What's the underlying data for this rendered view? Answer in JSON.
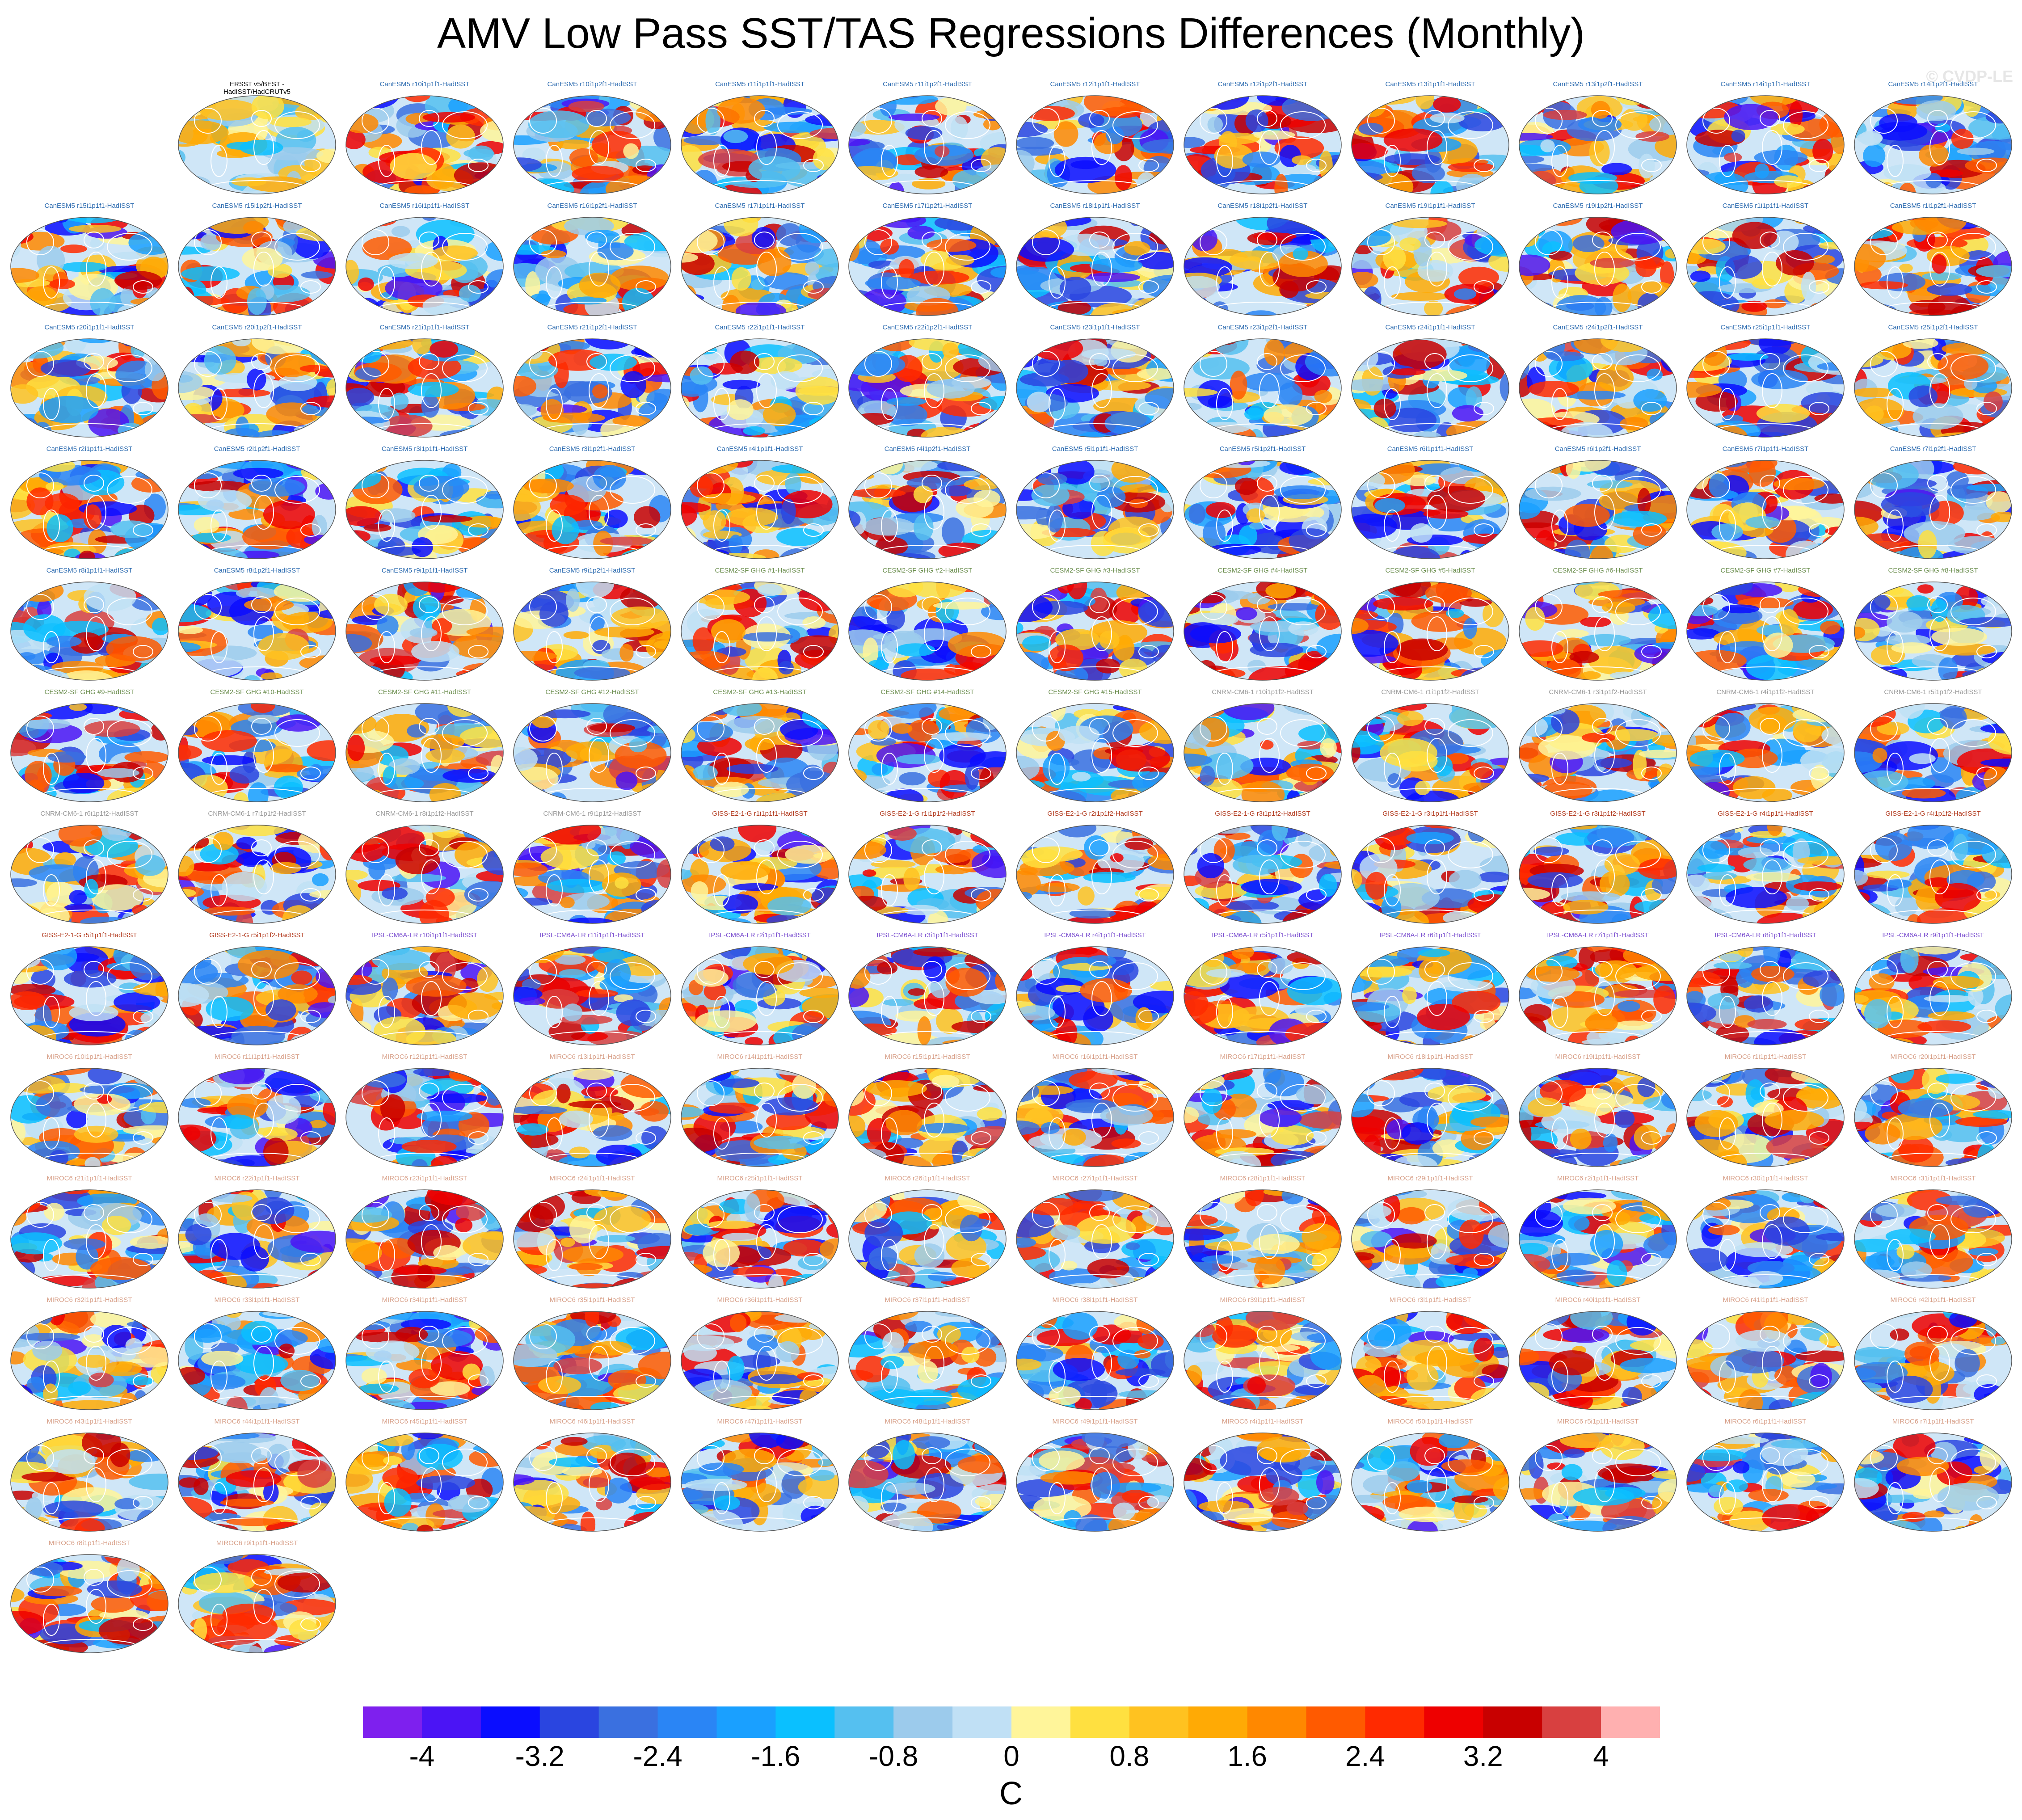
{
  "title": "AMV Low Pass SST/TAS Regressions Differences (Monthly)",
  "watermark": "© CVDP-LE",
  "colors": {
    "canesm5": "#2c6bb0",
    "cesm2": "#6b8e4e",
    "cnrm": "#9a9a9a",
    "giss": "#b23a1e",
    "ipsl": "#7b4fd0",
    "miroc6": "#d8a089",
    "obs": "#000000",
    "land": "#a8a8a8"
  },
  "panels": [
    {
      "title": "ERSST v5/BEST -\nHadISST/HadCRUTv5",
      "group": "obs"
    },
    {
      "title": "CanESM5 r10i1p1f1-HadISST",
      "group": "canesm5"
    },
    {
      "title": "CanESM5 r10i1p2f1-HadISST",
      "group": "canesm5"
    },
    {
      "title": "CanESM5 r11i1p1f1-HadISST",
      "group": "canesm5"
    },
    {
      "title": "CanESM5 r11i1p2f1-HadISST",
      "group": "canesm5"
    },
    {
      "title": "CanESM5 r12i1p1f1-HadISST",
      "group": "canesm5"
    },
    {
      "title": "CanESM5 r12i1p2f1-HadISST",
      "group": "canesm5"
    },
    {
      "title": "CanESM5 r13i1p1f1-HadISST",
      "group": "canesm5"
    },
    {
      "title": "CanESM5 r13i1p2f1-HadISST",
      "group": "canesm5"
    },
    {
      "title": "CanESM5 r14i1p1f1-HadISST",
      "group": "canesm5"
    },
    {
      "title": "CanESM5 r14i1p2f1-HadISST",
      "group": "canesm5"
    },
    {
      "title": "CanESM5 r15i1p1f1-HadISST",
      "group": "canesm5"
    },
    {
      "title": "CanESM5 r15i1p2f1-HadISST",
      "group": "canesm5"
    },
    {
      "title": "CanESM5 r16i1p1f1-HadISST",
      "group": "canesm5"
    },
    {
      "title": "CanESM5 r16i1p2f1-HadISST",
      "group": "canesm5"
    },
    {
      "title": "CanESM5 r17i1p1f1-HadISST",
      "group": "canesm5"
    },
    {
      "title": "CanESM5 r17i1p2f1-HadISST",
      "group": "canesm5"
    },
    {
      "title": "CanESM5 r18i1p1f1-HadISST",
      "group": "canesm5"
    },
    {
      "title": "CanESM5 r18i1p2f1-HadISST",
      "group": "canesm5"
    },
    {
      "title": "CanESM5 r19i1p1f1-HadISST",
      "group": "canesm5"
    },
    {
      "title": "CanESM5 r19i1p2f1-HadISST",
      "group": "canesm5"
    },
    {
      "title": "CanESM5 r1i1p1f1-HadISST",
      "group": "canesm5"
    },
    {
      "title": "CanESM5 r1i1p2f1-HadISST",
      "group": "canesm5"
    },
    {
      "title": "CanESM5 r20i1p1f1-HadISST",
      "group": "canesm5"
    },
    {
      "title": "CanESM5 r20i1p2f1-HadISST",
      "group": "canesm5"
    },
    {
      "title": "CanESM5 r21i1p1f1-HadISST",
      "group": "canesm5"
    },
    {
      "title": "CanESM5 r21i1p2f1-HadISST",
      "group": "canesm5"
    },
    {
      "title": "CanESM5 r22i1p1f1-HadISST",
      "group": "canesm5"
    },
    {
      "title": "CanESM5 r22i1p2f1-HadISST",
      "group": "canesm5"
    },
    {
      "title": "CanESM5 r23i1p1f1-HadISST",
      "group": "canesm5"
    },
    {
      "title": "CanESM5 r23i1p2f1-HadISST",
      "group": "canesm5"
    },
    {
      "title": "CanESM5 r24i1p1f1-HadISST",
      "group": "canesm5"
    },
    {
      "title": "CanESM5 r24i1p2f1-HadISST",
      "group": "canesm5"
    },
    {
      "title": "CanESM5 r25i1p1f1-HadISST",
      "group": "canesm5"
    },
    {
      "title": "CanESM5 r25i1p2f1-HadISST",
      "group": "canesm5"
    },
    {
      "title": "CanESM5 r2i1p1f1-HadISST",
      "group": "canesm5"
    },
    {
      "title": "CanESM5 r2i1p2f1-HadISST",
      "group": "canesm5"
    },
    {
      "title": "CanESM5 r3i1p1f1-HadISST",
      "group": "canesm5"
    },
    {
      "title": "CanESM5 r3i1p2f1-HadISST",
      "group": "canesm5"
    },
    {
      "title": "CanESM5 r4i1p1f1-HadISST",
      "group": "canesm5"
    },
    {
      "title": "CanESM5 r4i1p2f1-HadISST",
      "group": "canesm5"
    },
    {
      "title": "CanESM5 r5i1p1f1-HadISST",
      "group": "canesm5"
    },
    {
      "title": "CanESM5 r5i1p2f1-HadISST",
      "group": "canesm5"
    },
    {
      "title": "CanESM5 r6i1p1f1-HadISST",
      "group": "canesm5"
    },
    {
      "title": "CanESM5 r6i1p2f1-HadISST",
      "group": "canesm5"
    },
    {
      "title": "CanESM5 r7i1p1f1-HadISST",
      "group": "canesm5"
    },
    {
      "title": "CanESM5 r7i1p2f1-HadISST",
      "group": "canesm5"
    },
    {
      "title": "CanESM5 r8i1p1f1-HadISST",
      "group": "canesm5"
    },
    {
      "title": "CanESM5 r8i1p2f1-HadISST",
      "group": "canesm5"
    },
    {
      "title": "CanESM5 r9i1p1f1-HadISST",
      "group": "canesm5"
    },
    {
      "title": "CanESM5 r9i1p2f1-HadISST",
      "group": "canesm5"
    },
    {
      "title": "CESM2-SF GHG #1-HadISST",
      "group": "cesm2"
    },
    {
      "title": "CESM2-SF GHG #2-HadISST",
      "group": "cesm2"
    },
    {
      "title": "CESM2-SF GHG #3-HadISST",
      "group": "cesm2"
    },
    {
      "title": "CESM2-SF GHG #4-HadISST",
      "group": "cesm2"
    },
    {
      "title": "CESM2-SF GHG #5-HadISST",
      "group": "cesm2"
    },
    {
      "title": "CESM2-SF GHG #6-HadISST",
      "group": "cesm2"
    },
    {
      "title": "CESM2-SF GHG #7-HadISST",
      "group": "cesm2"
    },
    {
      "title": "CESM2-SF GHG #8-HadISST",
      "group": "cesm2"
    },
    {
      "title": "CESM2-SF GHG #9-HadISST",
      "group": "cesm2"
    },
    {
      "title": "CESM2-SF GHG #10-HadISST",
      "group": "cesm2"
    },
    {
      "title": "CESM2-SF GHG #11-HadISST",
      "group": "cesm2"
    },
    {
      "title": "CESM2-SF GHG #12-HadISST",
      "group": "cesm2"
    },
    {
      "title": "CESM2-SF GHG #13-HadISST",
      "group": "cesm2"
    },
    {
      "title": "CESM2-SF GHG #14-HadISST",
      "group": "cesm2"
    },
    {
      "title": "CESM2-SF GHG #15-HadISST",
      "group": "cesm2"
    },
    {
      "title": "CNRM-CM6-1 r10i1p1f2-HadISST",
      "group": "cnrm"
    },
    {
      "title": "CNRM-CM6-1 r1i1p1f2-HadISST",
      "group": "cnrm"
    },
    {
      "title": "CNRM-CM6-1 r3i1p1f2-HadISST",
      "group": "cnrm"
    },
    {
      "title": "CNRM-CM6-1 r4i1p1f2-HadISST",
      "group": "cnrm"
    },
    {
      "title": "CNRM-CM6-1 r5i1p1f2-HadISST",
      "group": "cnrm"
    },
    {
      "title": "CNRM-CM6-1 r6i1p1f2-HadISST",
      "group": "cnrm"
    },
    {
      "title": "CNRM-CM6-1 r7i1p1f2-HadISST",
      "group": "cnrm"
    },
    {
      "title": "CNRM-CM6-1 r8i1p1f2-HadISST",
      "group": "cnrm"
    },
    {
      "title": "CNRM-CM6-1 r9i1p1f2-HadISST",
      "group": "cnrm"
    },
    {
      "title": "GISS-E2-1-G r1i1p1f1-HadISST",
      "group": "giss"
    },
    {
      "title": "GISS-E2-1-G r1i1p1f2-HadISST",
      "group": "giss"
    },
    {
      "title": "GISS-E2-1-G r2i1p1f2-HadISST",
      "group": "giss"
    },
    {
      "title": "GISS-E2-1-G r3i1p1f2-HadISST",
      "group": "giss"
    },
    {
      "title": "GISS-E2-1-G r3i1p1f1-HadISST",
      "group": "giss"
    },
    {
      "title": "GISS-E2-1-G r3i1p1f2-HadISST",
      "group": "giss"
    },
    {
      "title": "GISS-E2-1-G r4i1p1f1-HadISST",
      "group": "giss"
    },
    {
      "title": "GISS-E2-1-G r4i1p1f2-HadISST",
      "group": "giss"
    },
    {
      "title": "GISS-E2-1-G r5i1p1f1-HadISST",
      "group": "giss"
    },
    {
      "title": "GISS-E2-1-G r5i1p1f2-HadISST",
      "group": "giss"
    },
    {
      "title": "IPSL-CM6A-LR r10i1p1f1-HadISST",
      "group": "ipsl"
    },
    {
      "title": "IPSL-CM6A-LR r11i1p1f1-HadISST",
      "group": "ipsl"
    },
    {
      "title": "IPSL-CM6A-LR r2i1p1f1-HadISST",
      "group": "ipsl"
    },
    {
      "title": "IPSL-CM6A-LR r3i1p1f1-HadISST",
      "group": "ipsl"
    },
    {
      "title": "IPSL-CM6A-LR r4i1p1f1-HadISST",
      "group": "ipsl"
    },
    {
      "title": "IPSL-CM6A-LR r5i1p1f1-HadISST",
      "group": "ipsl"
    },
    {
      "title": "IPSL-CM6A-LR r6i1p1f1-HadISST",
      "group": "ipsl"
    },
    {
      "title": "IPSL-CM6A-LR r7i1p1f1-HadISST",
      "group": "ipsl"
    },
    {
      "title": "IPSL-CM6A-LR r8i1p1f1-HadISST",
      "group": "ipsl"
    },
    {
      "title": "IPSL-CM6A-LR r9i1p1f1-HadISST",
      "group": "ipsl"
    },
    {
      "title": "MIROC6 r10i1p1f1-HadISST",
      "group": "miroc6"
    },
    {
      "title": "MIROC6 r11i1p1f1-HadISST",
      "group": "miroc6"
    },
    {
      "title": "MIROC6 r12i1p1f1-HadISST",
      "group": "miroc6"
    },
    {
      "title": "MIROC6 r13i1p1f1-HadISST",
      "group": "miroc6"
    },
    {
      "title": "MIROC6 r14i1p1f1-HadISST",
      "group": "miroc6"
    },
    {
      "title": "MIROC6 r15i1p1f1-HadISST",
      "group": "miroc6"
    },
    {
      "title": "MIROC6 r16i1p1f1-HadISST",
      "group": "miroc6"
    },
    {
      "title": "MIROC6 r17i1p1f1-HadISST",
      "group": "miroc6"
    },
    {
      "title": "MIROC6 r18i1p1f1-HadISST",
      "group": "miroc6"
    },
    {
      "title": "MIROC6 r19i1p1f1-HadISST",
      "group": "miroc6"
    },
    {
      "title": "MIROC6 r1i1p1f1-HadISST",
      "group": "miroc6"
    },
    {
      "title": "MIROC6 r20i1p1f1-HadISST",
      "group": "miroc6"
    },
    {
      "title": "MIROC6 r21i1p1f1-HadISST",
      "group": "miroc6"
    },
    {
      "title": "MIROC6 r22i1p1f1-HadISST",
      "group": "miroc6"
    },
    {
      "title": "MIROC6 r23i1p1f1-HadISST",
      "group": "miroc6"
    },
    {
      "title": "MIROC6 r24i1p1f1-HadISST",
      "group": "miroc6"
    },
    {
      "title": "MIROC6 r25i1p1f1-HadISST",
      "group": "miroc6"
    },
    {
      "title": "MIROC6 r26i1p1f1-HadISST",
      "group": "miroc6"
    },
    {
      "title": "MIROC6 r27i1p1f1-HadISST",
      "group": "miroc6"
    },
    {
      "title": "MIROC6 r28i1p1f1-HadISST",
      "group": "miroc6"
    },
    {
      "title": "MIROC6 r29i1p1f1-HadISST",
      "group": "miroc6"
    },
    {
      "title": "MIROC6 r2i1p1f1-HadISST",
      "group": "miroc6"
    },
    {
      "title": "MIROC6 r30i1p1f1-HadISST",
      "group": "miroc6"
    },
    {
      "title": "MIROC6 r31i1p1f1-HadISST",
      "group": "miroc6"
    },
    {
      "title": "MIROC6 r32i1p1f1-HadISST",
      "group": "miroc6"
    },
    {
      "title": "MIROC6 r33i1p1f1-HadISST",
      "group": "miroc6"
    },
    {
      "title": "MIROC6 r34i1p1f1-HadISST",
      "group": "miroc6"
    },
    {
      "title": "MIROC6 r35i1p1f1-HadISST",
      "group": "miroc6"
    },
    {
      "title": "MIROC6 r36i1p1f1-HadISST",
      "group": "miroc6"
    },
    {
      "title": "MIROC6 r37i1p1f1-HadISST",
      "group": "miroc6"
    },
    {
      "title": "MIROC6 r38i1p1f1-HadISST",
      "group": "miroc6"
    },
    {
      "title": "MIROC6 r39i1p1f1-HadISST",
      "group": "miroc6"
    },
    {
      "title": "MIROC6 r3i1p1f1-HadISST",
      "group": "miroc6"
    },
    {
      "title": "MIROC6 r40i1p1f1-HadISST",
      "group": "miroc6"
    },
    {
      "title": "MIROC6 r41i1p1f1-HadISST",
      "group": "miroc6"
    },
    {
      "title": "MIROC6 r42i1p1f1-HadISST",
      "group": "miroc6"
    },
    {
      "title": "MIROC6 r43i1p1f1-HadISST",
      "group": "miroc6"
    },
    {
      "title": "MIROC6 r44i1p1f1-HadISST",
      "group": "miroc6"
    },
    {
      "title": "MIROC6 r45i1p1f1-HadISST",
      "group": "miroc6"
    },
    {
      "title": "MIROC6 r46i1p1f1-HadISST",
      "group": "miroc6"
    },
    {
      "title": "MIROC6 r47i1p1f1-HadISST",
      "group": "miroc6"
    },
    {
      "title": "MIROC6 r48i1p1f1-HadISST",
      "group": "miroc6"
    },
    {
      "title": "MIROC6 r49i1p1f1-HadISST",
      "group": "miroc6"
    },
    {
      "title": "MIROC6 r4i1p1f1-HadISST",
      "group": "miroc6"
    },
    {
      "title": "MIROC6 r50i1p1f1-HadISST",
      "group": "miroc6"
    },
    {
      "title": "MIROC6 r5i1p1f1-HadISST",
      "group": "miroc6"
    },
    {
      "title": "MIROC6 r6i1p1f1-HadISST",
      "group": "miroc6"
    },
    {
      "title": "MIROC6 r7i1p1f1-HadISST",
      "group": "miroc6"
    },
    {
      "title": "MIROC6 r8i1p1f1-HadISST",
      "group": "miroc6"
    },
    {
      "title": "MIROC6 r9i1p1f1-HadISST",
      "group": "miroc6"
    }
  ],
  "colorbar": {
    "colors": [
      "#7e20ee",
      "#4b14f5",
      "#0a0dff",
      "#2a45e0",
      "#3a70e0",
      "#2a85f5",
      "#1aa0ff",
      "#0ac0ff",
      "#55c0f0",
      "#9ccbec",
      "#c0e0f5",
      "#fff59a",
      "#ffe040",
      "#ffc220",
      "#ffaa05",
      "#ff8800",
      "#ff5a00",
      "#ff2a00",
      "#ee0000",
      "#c80000",
      "#d84040",
      "#ffb0b0"
    ],
    "tick_labels": [
      "-4",
      "-3.2",
      "-2.4",
      "-1.6",
      "-0.8",
      "0",
      "0.8",
      "1.6",
      "2.4",
      "3.2",
      "4"
    ],
    "units": "C"
  }
}
